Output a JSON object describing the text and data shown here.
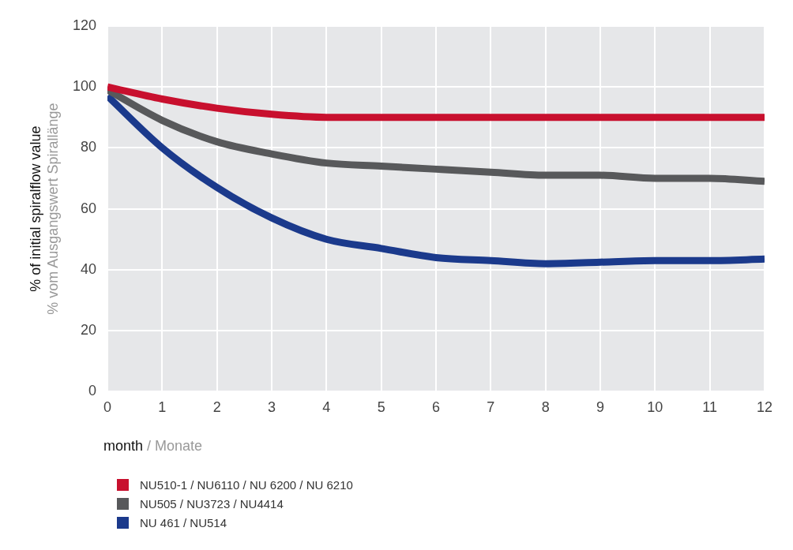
{
  "chart_data": {
    "type": "line",
    "xlabel": "month / Monate",
    "ylabel": "% of initial spiralflow value\n% vom Ausgangswert Spirallänge",
    "x": [
      0,
      1,
      2,
      3,
      4,
      5,
      6,
      7,
      8,
      9,
      10,
      11,
      12
    ],
    "xlim": [
      0,
      12
    ],
    "xticks": [
      0,
      1,
      2,
      3,
      4,
      5,
      6,
      7,
      8,
      9,
      10,
      11,
      12
    ],
    "ylim": [
      0,
      120
    ],
    "yticks": [
      0,
      20,
      40,
      60,
      80,
      100,
      120
    ],
    "grid": true,
    "legend": "bottom",
    "marker": "none",
    "line_style": "solid",
    "series": [
      {
        "name": "NU510-1 / NU6110 / NU 6200 / NU 6210",
        "color": "#c8102e",
        "values": [
          100,
          96,
          93,
          91,
          90,
          90,
          90,
          90,
          90,
          90,
          90,
          90,
          90
        ]
      },
      {
        "name": "NU505 / NU3723 / NU4414",
        "color": "#58595b",
        "values": [
          99,
          89,
          82,
          78,
          75,
          74,
          73,
          72,
          71,
          71,
          70,
          70,
          69
        ]
      },
      {
        "name": "NU 461 / NU514",
        "color": "#1b3a8c",
        "values": [
          97,
          80,
          67,
          57,
          50,
          47,
          44,
          43,
          42,
          42.5,
          43,
          43,
          43.5
        ]
      }
    ]
  }
}
